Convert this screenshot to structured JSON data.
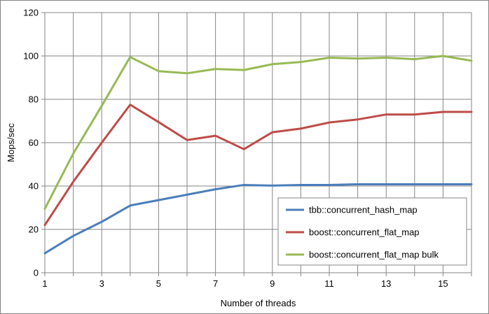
{
  "chart_data": {
    "type": "line",
    "title": "",
    "xlabel": "Number of threads",
    "ylabel": "Mops/sec",
    "x": [
      1,
      2,
      3,
      4,
      5,
      6,
      7,
      8,
      9,
      10,
      11,
      12,
      13,
      14,
      15,
      16
    ],
    "xlim": [
      1,
      16
    ],
    "ylim": [
      0,
      120
    ],
    "x_tick_labels": [
      "1",
      "3",
      "5",
      "7",
      "9",
      "11",
      "13",
      "15"
    ],
    "x_tick_values": [
      1,
      3,
      5,
      7,
      9,
      11,
      13,
      15
    ],
    "y_tick_labels": [
      "0",
      "20",
      "40",
      "60",
      "80",
      "100",
      "120"
    ],
    "y_tick_values": [
      0,
      20,
      40,
      60,
      80,
      100,
      120
    ],
    "grid": "both",
    "legend_position": "bottom-right",
    "series": [
      {
        "name": "tbb::concurrent_hash_map",
        "color": "#4a7ebb",
        "values": [
          9,
          17,
          23.5,
          31,
          33.5,
          36,
          38.5,
          40.5,
          40.2,
          40.5,
          40.5,
          40.8,
          40.8,
          40.8,
          40.8,
          40.8
        ]
      },
      {
        "name": "boost::concurrent_flat_map",
        "color": "#be4b48",
        "values": [
          22,
          42,
          60,
          77.5,
          69.5,
          61.2,
          63.2,
          57,
          64.8,
          66.5,
          69.3,
          70.7,
          73,
          73,
          74.2,
          74.2
        ]
      },
      {
        "name": "boost::concurrent_flat_map bulk",
        "color": "#98b954",
        "values": [
          29.5,
          55,
          77,
          99.5,
          93,
          92,
          94,
          93.5,
          96.2,
          97.2,
          99.2,
          98.8,
          99.2,
          98.5,
          100,
          97.8
        ]
      }
    ]
  }
}
